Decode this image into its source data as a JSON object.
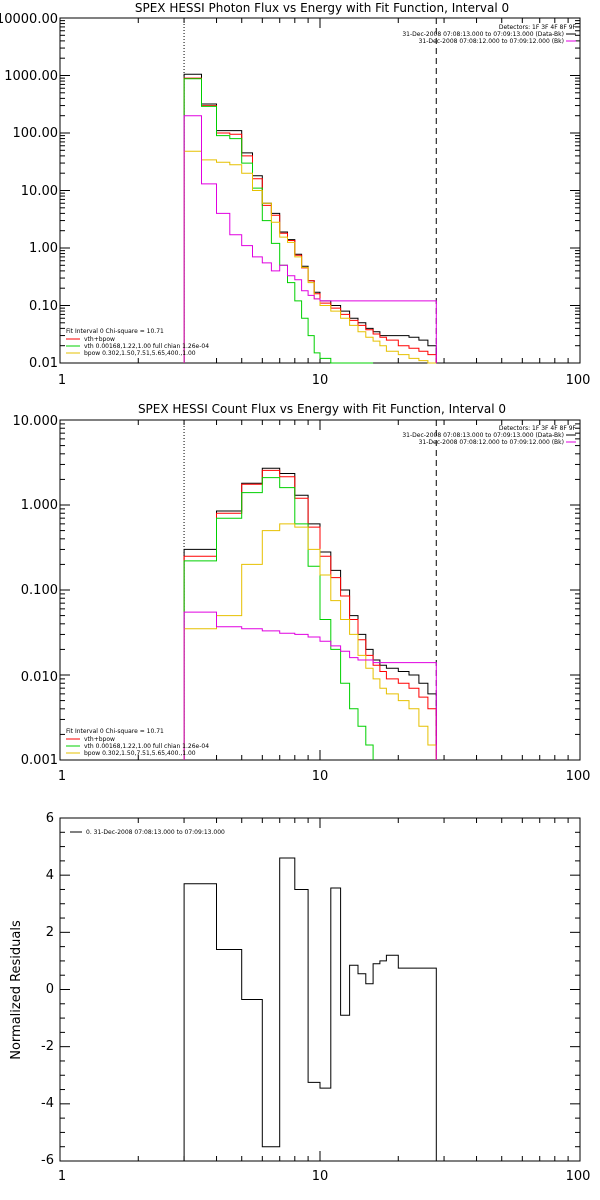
{
  "colors": {
    "data": "#000000",
    "total_fit": "#ff0000",
    "vth": "#00d000",
    "bpow": "#e6c000",
    "background": "#e000e0",
    "residuals": "#000000"
  },
  "chart_data": [
    {
      "type": "line",
      "title": "SPEX HESSI Photon Flux vs Energy with Fit Function, Interval 0",
      "xlabel": "",
      "ylabel": "",
      "xscale": "log",
      "yscale": "log",
      "xlim": [
        1,
        100
      ],
      "ylim": [
        0.01,
        10000
      ],
      "x_tick_labels": [
        "1",
        "10",
        "100"
      ],
      "y_tick_labels": [
        "0.01",
        "0.10",
        "1.00",
        "10.00",
        "100.00",
        "1000.00",
        "10000.00"
      ],
      "vlines": [
        {
          "x": 3.0,
          "style": "dotted"
        },
        {
          "x": 28.0,
          "style": "dashed"
        }
      ],
      "legend_top": {
        "position": "top-right",
        "lines": [
          "Detectors: 1F 3F 4F 8F 9F",
          "31-Dec-2008 07:08:13.000 to 07:09:13.000 (Data-Bk)",
          "31-Dec-2008 07:08:12.000 to 07:09:12.000 (Bk)"
        ]
      },
      "legend_bottom": {
        "position": "bottom-left",
        "header": "Fit Interval 0   Chi-square = 10.71",
        "lines": [
          "vth+bpow",
          "vth 0.00168,1.22,1.00  full chian 1.26e-04",
          "bpow 0.302,1.50,7.51,5.65,400.,1.00"
        ]
      },
      "series": [
        {
          "name": "",
          "style": "data",
          "edges": [
            3,
            3.5,
            4,
            4.5,
            5,
            5.5,
            6,
            6.5,
            7,
            7.5,
            8,
            8.5,
            9,
            9.5,
            10,
            11,
            12,
            13,
            14,
            15,
            16,
            17,
            18,
            20,
            22,
            24,
            26,
            28
          ],
          "values": [
            1050,
            320,
            110,
            110,
            45,
            18,
            6,
            4,
            1.9,
            1.4,
            0.78,
            0.48,
            0.27,
            0.17,
            0.12,
            0.1,
            0.08,
            0.06,
            0.05,
            0.04,
            0.035,
            0.03,
            0.03,
            0.03,
            0.028,
            0.025,
            0.02
          ]
        },
        {
          "name": "vth+bpow",
          "style": "total_fit",
          "edges": [
            3,
            3.5,
            4,
            4.5,
            5,
            5.5,
            6,
            6.5,
            7,
            7.5,
            8,
            8.5,
            9,
            9.5,
            10,
            11,
            12,
            13,
            14,
            15,
            16,
            17,
            18,
            20,
            22,
            24,
            26,
            28
          ],
          "values": [
            900,
            300,
            100,
            95,
            40,
            16,
            5.5,
            3.7,
            1.8,
            1.35,
            0.75,
            0.45,
            0.27,
            0.16,
            0.11,
            0.09,
            0.07,
            0.055,
            0.045,
            0.038,
            0.032,
            0.028,
            0.025,
            0.02,
            0.018,
            0.016,
            0.014
          ]
        },
        {
          "name": "vth",
          "style": "vth",
          "edges": [
            3,
            3.5,
            4,
            4.5,
            5,
            5.5,
            6,
            6.5,
            7,
            7.5,
            8,
            8.5,
            9,
            9.5,
            10,
            11,
            12,
            13,
            14,
            15,
            16
          ],
          "values": [
            880,
            290,
            90,
            80,
            30,
            11,
            3,
            1.2,
            0.5,
            0.25,
            0.12,
            0.06,
            0.03,
            0.015,
            0.012,
            0.01,
            0.01,
            0.01,
            0.01,
            0.01
          ]
        },
        {
          "name": "bpow",
          "style": "bpow",
          "edges": [
            3,
            3.5,
            4,
            4.5,
            5,
            5.5,
            6,
            6.5,
            7,
            7.5,
            8,
            8.5,
            9,
            9.5,
            10,
            11,
            12,
            13,
            14,
            15,
            16,
            17,
            18,
            20,
            22,
            24,
            26,
            28
          ],
          "values": [
            48,
            34,
            31,
            28,
            20,
            10,
            6,
            2.8,
            1.55,
            1.25,
            0.7,
            0.46,
            0.25,
            0.13,
            0.1,
            0.08,
            0.06,
            0.045,
            0.035,
            0.028,
            0.024,
            0.02,
            0.016,
            0.014,
            0.012,
            0.011,
            0.01
          ]
        },
        {
          "name": "",
          "style": "background",
          "edges": [
            3,
            3.5,
            4,
            4.5,
            5,
            5.5,
            6,
            6.5,
            7,
            7.5,
            8,
            8.5,
            9,
            9.5,
            10,
            11,
            12,
            13,
            14,
            15,
            16,
            17,
            18,
            20,
            22,
            24,
            26,
            28
          ],
          "values": [
            200,
            13,
            4,
            1.7,
            1.1,
            0.7,
            0.55,
            0.4,
            0.5,
            0.33,
            0.28,
            0.18,
            0.15,
            0.13,
            0.12,
            0.12,
            0.12,
            0.12,
            0.12,
            0.12,
            0.12,
            0.12,
            0.12,
            0.12,
            0.12,
            0.12,
            0.12
          ]
        }
      ]
    },
    {
      "type": "line",
      "title": "SPEX HESSI Count Flux vs Energy with Fit Function, Interval 0",
      "xlabel": "",
      "ylabel": "",
      "xscale": "log",
      "yscale": "log",
      "xlim": [
        1,
        100
      ],
      "ylim": [
        0.001,
        10
      ],
      "x_tick_labels": [
        "1",
        "10",
        "100"
      ],
      "y_tick_labels": [
        "0.001",
        "0.010",
        "0.100",
        "1.000",
        "10.000"
      ],
      "vlines": [
        {
          "x": 3.0,
          "style": "dotted"
        },
        {
          "x": 28.0,
          "style": "dashed"
        }
      ],
      "legend_top": {
        "position": "top-right",
        "lines": [
          "Detectors: 1F 3F 4F 8F 9F",
          "31-Dec-2008 07:08:13.000 to 07:09:13.000 (Data-Bk)",
          "31-Dec-2008 07:08:12.000 to 07:09:12.000 (Bk)"
        ]
      },
      "legend_bottom": {
        "position": "bottom-left",
        "header": "Fit Interval 0   Chi-square = 10.71",
        "lines": [
          "vth+bpow",
          "vth 0.00168,1.22,1.00  full chian 1.26e-04",
          "bpow 0.302,1.50,7.51,5.65,400.,1.00"
        ]
      },
      "series": [
        {
          "name": "",
          "style": "data",
          "edges": [
            3,
            4,
            5,
            6,
            7,
            8,
            9,
            10,
            11,
            12,
            13,
            14,
            15,
            16,
            17,
            18,
            20,
            22,
            24,
            26,
            28
          ],
          "values": [
            0.3,
            0.85,
            1.8,
            2.7,
            2.35,
            1.3,
            0.6,
            0.28,
            0.17,
            0.1,
            0.05,
            0.03,
            0.02,
            0.015,
            0.013,
            0.012,
            0.011,
            0.01,
            0.008,
            0.006
          ]
        },
        {
          "name": "vth+bpow",
          "style": "total_fit",
          "edges": [
            3,
            4,
            5,
            6,
            7,
            8,
            9,
            10,
            11,
            12,
            13,
            14,
            15,
            16,
            17,
            18,
            20,
            22,
            24,
            26,
            28
          ],
          "values": [
            0.25,
            0.8,
            1.75,
            2.55,
            2.15,
            1.2,
            0.55,
            0.25,
            0.14,
            0.085,
            0.045,
            0.026,
            0.017,
            0.013,
            0.011,
            0.009,
            0.008,
            0.007,
            0.0055,
            0.004
          ]
        },
        {
          "name": "vth",
          "style": "vth",
          "edges": [
            3,
            4,
            5,
            6,
            7,
            8,
            9,
            10,
            11,
            12,
            13,
            14,
            15,
            16
          ],
          "values": [
            0.22,
            0.7,
            1.4,
            2.1,
            1.6,
            0.6,
            0.19,
            0.045,
            0.02,
            0.008,
            0.004,
            0.0025,
            0.0015
          ]
        },
        {
          "name": "bpow",
          "style": "bpow",
          "edges": [
            3,
            4,
            5,
            6,
            7,
            8,
            9,
            10,
            11,
            12,
            13,
            14,
            15,
            16,
            17,
            18,
            20,
            22,
            24,
            26,
            28
          ],
          "values": [
            0.035,
            0.05,
            0.2,
            0.5,
            0.6,
            0.55,
            0.3,
            0.15,
            0.075,
            0.045,
            0.03,
            0.017,
            0.012,
            0.009,
            0.007,
            0.006,
            0.005,
            0.004,
            0.0025,
            0.0015
          ]
        },
        {
          "name": "",
          "style": "background",
          "edges": [
            3,
            4,
            5,
            6,
            7,
            8,
            9,
            10,
            11,
            12,
            13,
            14,
            15,
            16,
            17,
            18,
            20,
            22,
            24,
            26,
            28
          ],
          "values": [
            0.055,
            0.037,
            0.035,
            0.033,
            0.031,
            0.03,
            0.028,
            0.025,
            0.022,
            0.019,
            0.016,
            0.015,
            0.015,
            0.014,
            0.014,
            0.014,
            0.014,
            0.014,
            0.014,
            0.014
          ]
        }
      ]
    },
    {
      "type": "line",
      "title": "",
      "xlabel": "",
      "ylabel": "Normalized Residuals",
      "xscale": "log",
      "yscale": "linear",
      "xlim": [
        1,
        100
      ],
      "ylim": [
        -6,
        6
      ],
      "x_tick_labels": [
        "1",
        "10",
        "100"
      ],
      "y_tick_labels": [
        "-6",
        "-4",
        "-2",
        "0",
        "2",
        "4",
        "6"
      ],
      "legend_top": {
        "position": "top-left",
        "lines": [
          "0. 31-Dec-2008 07:08:13.000 to 07:09:13.000"
        ]
      },
      "series": [
        {
          "name": "0. 31-Dec-2008 07:08:13.000 to 07:09:13.000",
          "style": "residuals",
          "edges": [
            3,
            4,
            5,
            6,
            7,
            8,
            9,
            10,
            11,
            12,
            13,
            14,
            15,
            16,
            17,
            18,
            20,
            22,
            24,
            26,
            28
          ],
          "values": [
            3.7,
            1.4,
            -0.35,
            -5.5,
            4.6,
            3.5,
            -3.25,
            -3.45,
            3.55,
            -0.9,
            0.85,
            0.55,
            0.2,
            0.9,
            1.0,
            1.2,
            0.75,
            0.75,
            0.75,
            0.75
          ]
        }
      ]
    }
  ]
}
